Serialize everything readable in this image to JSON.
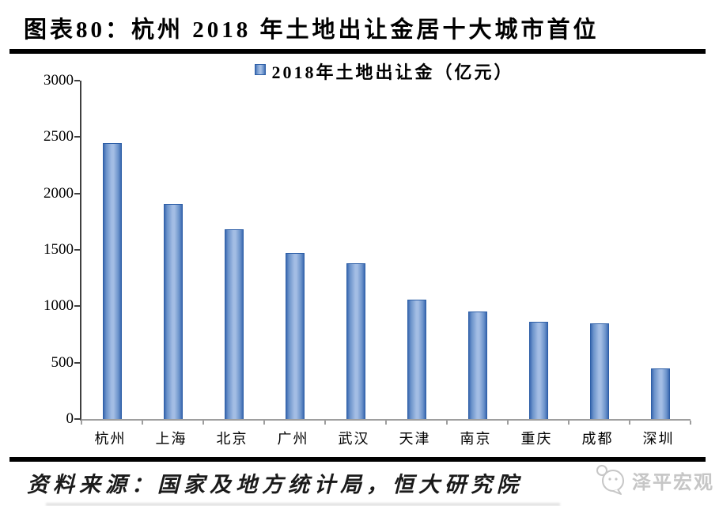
{
  "page": {
    "title": "图表80：杭州 2018 年土地出让金居十大城市首位",
    "source_note": "资料来源：国家及地方统计局，恒大研究院",
    "brand": "泽平宏观"
  },
  "chart_data": {
    "type": "bar",
    "title": "图表80：杭州 2018 年土地出让金居十大城市首位",
    "legend": [
      "2018年土地出让金（亿元）"
    ],
    "legend_position": "top-center",
    "categories": [
      "杭州",
      "上海",
      "北京",
      "广州",
      "武汉",
      "天津",
      "南京",
      "重庆",
      "成都",
      "深圳"
    ],
    "values": [
      2443,
      1908,
      1683,
      1470,
      1380,
      1058,
      955,
      865,
      850,
      450
    ],
    "xlabel": "",
    "ylabel": "",
    "ylim": [
      0,
      3000
    ],
    "yticks": [
      0,
      500,
      1000,
      1500,
      2000,
      2500,
      3000
    ],
    "grid": false,
    "colors": {
      "bar_edge": "#2e5fa7",
      "bar_dark": "#3c6ab1",
      "bar_light": "#a3bde4",
      "y_axis": "#404040",
      "x_axis": "#9e9e9e"
    }
  }
}
